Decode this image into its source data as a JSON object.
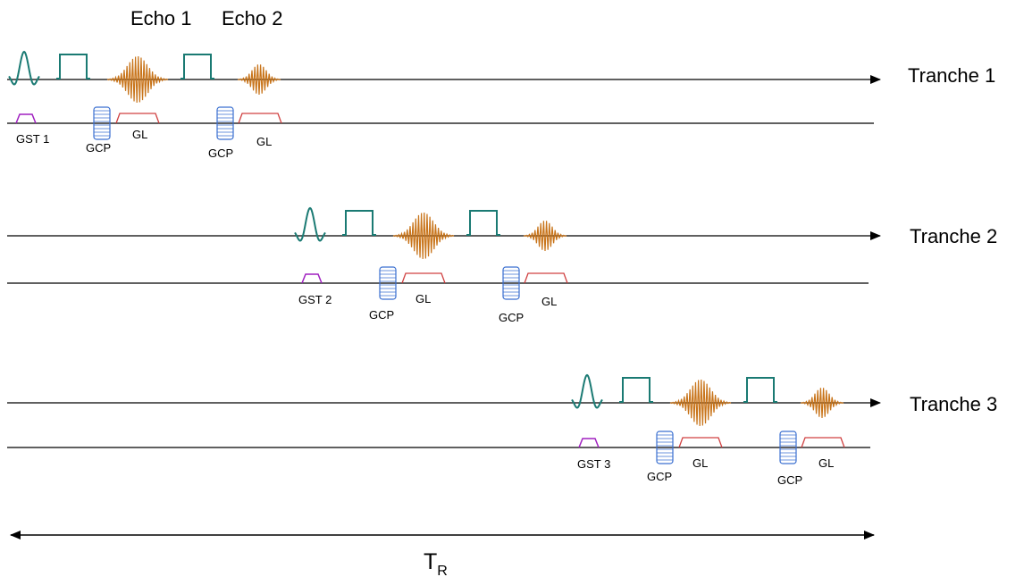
{
  "echo_labels": [
    "Echo 1",
    "Echo 2"
  ],
  "slices": [
    {
      "label": "Tranche 1",
      "gst_label": "GST 1",
      "gcp_label": "GCP",
      "gl_label": "GL"
    },
    {
      "label": "Tranche 2",
      "gst_label": "GST 2",
      "gcp_label": "GCP",
      "gl_label": "GL"
    },
    {
      "label": "Tranche 3",
      "gst_label": "GST 3",
      "gcp_label": "GCP",
      "gl_label": "GL"
    }
  ],
  "tr_label": {
    "main": "T",
    "sub": "R"
  },
  "colors": {
    "rf_pulse": "#1a7a73",
    "echo": "#c8741a",
    "gst": "#a020c0",
    "gcp": "#3a6fd0",
    "gl": "#d04040",
    "axis": "#000000"
  }
}
